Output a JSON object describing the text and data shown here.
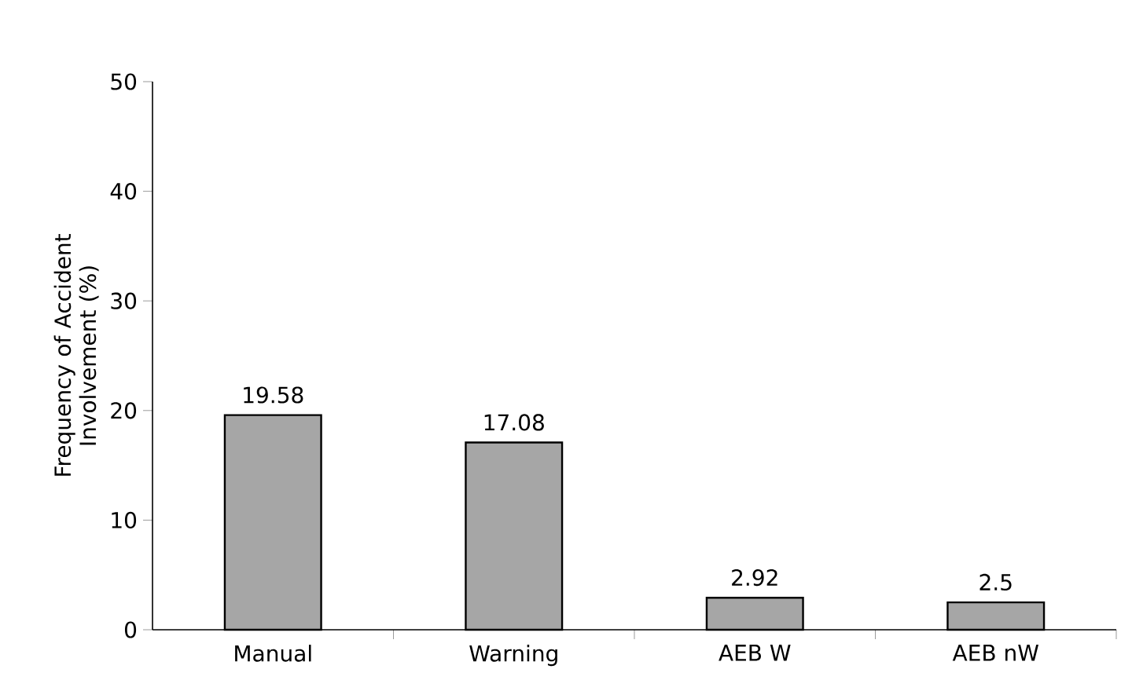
{
  "chart_data": {
    "type": "bar",
    "ylabel": "Frequency of Accident Involvement  (%)",
    "categories": [
      "Manual",
      "Warning",
      "AEB W",
      "AEB nW"
    ],
    "values": [
      19.58,
      17.08,
      2.92,
      2.5
    ],
    "color": "#a6a6a6",
    "ylim": [
      0,
      50
    ],
    "yticks": [
      0,
      10,
      20,
      30,
      40,
      50
    ],
    "data_labels": true,
    "grid": false
  }
}
